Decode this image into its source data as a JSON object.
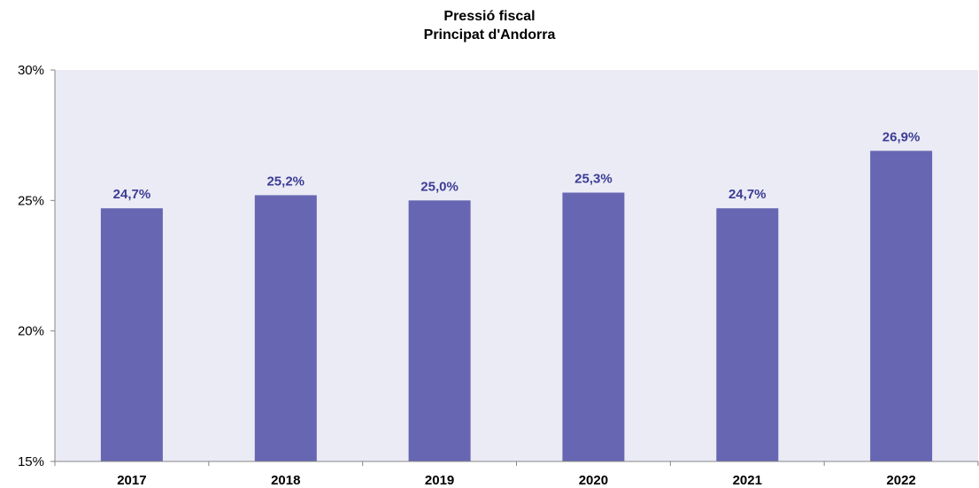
{
  "chart_data": {
    "type": "bar",
    "title": "Pressió fiscal",
    "subtitle": "Principat d'Andorra",
    "xlabel": "",
    "ylabel": "",
    "categories": [
      "2017",
      "2018",
      "2019",
      "2020",
      "2021",
      "2022"
    ],
    "values": [
      24.7,
      25.2,
      25.0,
      25.3,
      24.7,
      26.9
    ],
    "data_labels": [
      "24,7%",
      "25,2%",
      "25,0%",
      "25,3%",
      "24,7%",
      "26,9%"
    ],
    "ylim": [
      15,
      30
    ],
    "yticks": [
      15,
      20,
      25,
      30
    ],
    "ytick_labels": [
      "15%",
      "20%",
      "25%",
      "30%"
    ],
    "grid": false,
    "legend": "none",
    "colors": {
      "bar": "#6666b3",
      "data_label": "#3c3c96",
      "axis": "#868686",
      "text": "#000000"
    }
  }
}
